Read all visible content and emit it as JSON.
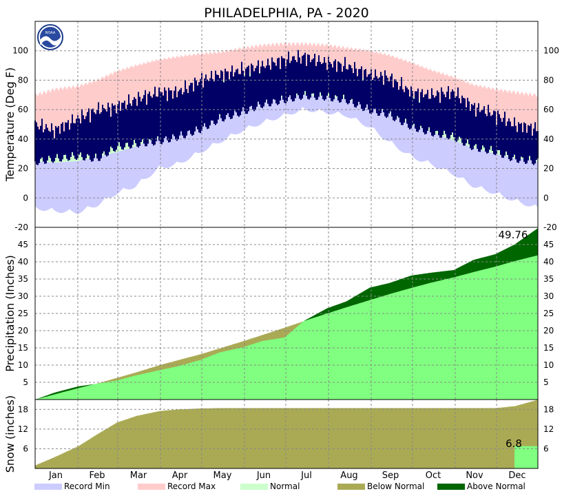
{
  "title": "PHILADELPHIA, PA - 2020",
  "logo_text": "NOAA",
  "colors": {
    "record_min": "#ccccff",
    "record_max": "#ffcccc",
    "normal": "#ccffcc",
    "actual_temp": "#000066",
    "below_normal": "#aaaa55",
    "above_normal": "#006600",
    "normal_precip": "#80ff80",
    "grid": "#888888"
  },
  "months": [
    "Jan",
    "Feb",
    "Mar",
    "Apr",
    "May",
    "Jun",
    "Jul",
    "Aug",
    "Sep",
    "Oct",
    "Nov",
    "Dec"
  ],
  "legend": [
    {
      "label": "Record Min",
      "color": "#ccccff"
    },
    {
      "label": "Record Max",
      "color": "#ffcccc"
    },
    {
      "label": "Normal",
      "color": "#ccffcc"
    },
    {
      "label": "Below Normal",
      "color": "#aaaa55"
    },
    {
      "label": "Above Normal",
      "color": "#006600"
    }
  ],
  "chart_data": [
    {
      "type": "area",
      "name": "temperature",
      "ylabel": "Temperature (Deg F)",
      "ylim": [
        -20,
        120
      ],
      "yticks": [
        -20,
        0,
        20,
        40,
        60,
        80,
        100
      ],
      "x_unit": "day of year",
      "x": [
        1,
        15,
        32,
        46,
        60,
        74,
        91,
        105,
        121,
        135,
        152,
        166,
        182,
        196,
        213,
        227,
        244,
        258,
        274,
        288,
        305,
        319,
        335,
        349,
        366
      ],
      "record_min": [
        -5,
        -7,
        -8,
        -3,
        5,
        10,
        22,
        25,
        33,
        40,
        48,
        53,
        58,
        62,
        60,
        58,
        50,
        40,
        30,
        25,
        18,
        10,
        5,
        0,
        -5
      ],
      "normal_low": [
        25,
        24,
        25,
        28,
        31,
        35,
        41,
        45,
        51,
        56,
        62,
        66,
        69,
        70,
        69,
        67,
        63,
        58,
        50,
        45,
        39,
        34,
        30,
        27,
        25
      ],
      "normal_high": [
        40,
        40,
        43,
        47,
        52,
        57,
        64,
        69,
        74,
        79,
        84,
        86,
        88,
        88,
        86,
        84,
        80,
        76,
        69,
        64,
        57,
        51,
        46,
        42,
        40
      ],
      "record_max": [
        68,
        72,
        74,
        78,
        84,
        88,
        92,
        94,
        96,
        97,
        100,
        102,
        103,
        103,
        102,
        100,
        98,
        95,
        90,
        85,
        80,
        75,
        72,
        70,
        68
      ],
      "actual_low": [
        28,
        30,
        32,
        30,
        38,
        40,
        42,
        45,
        50,
        57,
        62,
        67,
        70,
        73,
        72,
        70,
        63,
        60,
        52,
        48,
        45,
        38,
        35,
        30,
        28
      ],
      "actual_high": [
        48,
        44,
        52,
        58,
        60,
        65,
        70,
        70,
        78,
        82,
        85,
        88,
        92,
        94,
        90,
        88,
        82,
        80,
        70,
        68,
        70,
        60,
        55,
        48,
        45
      ]
    },
    {
      "type": "area",
      "name": "precipitation",
      "ylabel": "Precipitation (Inches)",
      "ylim": [
        0,
        50
      ],
      "yticks": [
        5,
        10,
        15,
        20,
        25,
        30,
        35,
        40,
        45
      ],
      "x": [
        1,
        15,
        32,
        46,
        60,
        74,
        91,
        105,
        121,
        135,
        152,
        166,
        182,
        196,
        213,
        227,
        244,
        258,
        274,
        288,
        305,
        319,
        335,
        349,
        366
      ],
      "normal_cumulative": [
        0,
        1.5,
        3.3,
        4.7,
        6.3,
        7.9,
        10.0,
        11.5,
        13.2,
        14.9,
        17.0,
        18.8,
        20.9,
        22.8,
        25.0,
        26.8,
        28.9,
        30.6,
        32.4,
        33.9,
        35.5,
        37.0,
        38.6,
        40.2,
        41.9
      ],
      "actual_cumulative": [
        0,
        2.0,
        3.8,
        4.6,
        5.5,
        7.0,
        8.5,
        9.7,
        11.5,
        13.7,
        15.2,
        17.0,
        18.0,
        22.8,
        26.5,
        28.5,
        32.5,
        33.8,
        36.0,
        36.8,
        37.6,
        40.5,
        42.2,
        45.0,
        49.76
      ],
      "annotation": "49.76"
    },
    {
      "type": "area",
      "name": "snow",
      "ylabel": "Snow (inches)",
      "ylim": [
        0,
        21
      ],
      "yticks": [
        6,
        12,
        18
      ],
      "x": [
        1,
        15,
        32,
        46,
        60,
        74,
        91,
        105,
        121,
        135,
        152,
        166,
        182,
        196,
        213,
        227,
        244,
        258,
        274,
        288,
        305,
        319,
        335,
        349,
        366
      ],
      "normal_cumulative": [
        1.0,
        3.5,
        6.8,
        10.5,
        14.0,
        16.0,
        17.5,
        18.0,
        18.3,
        18.4,
        18.4,
        18.4,
        18.4,
        18.4,
        18.4,
        18.4,
        18.4,
        18.4,
        18.4,
        18.4,
        18.4,
        18.4,
        18.4,
        19.0,
        21.0
      ],
      "actual_cumulative": [
        0,
        0,
        0,
        0,
        0,
        0,
        0,
        0,
        0,
        0,
        0,
        0,
        0,
        0,
        0,
        0,
        0,
        0,
        0,
        0,
        0,
        0,
        0,
        6.8,
        6.8
      ],
      "annotation": "6.8"
    }
  ]
}
